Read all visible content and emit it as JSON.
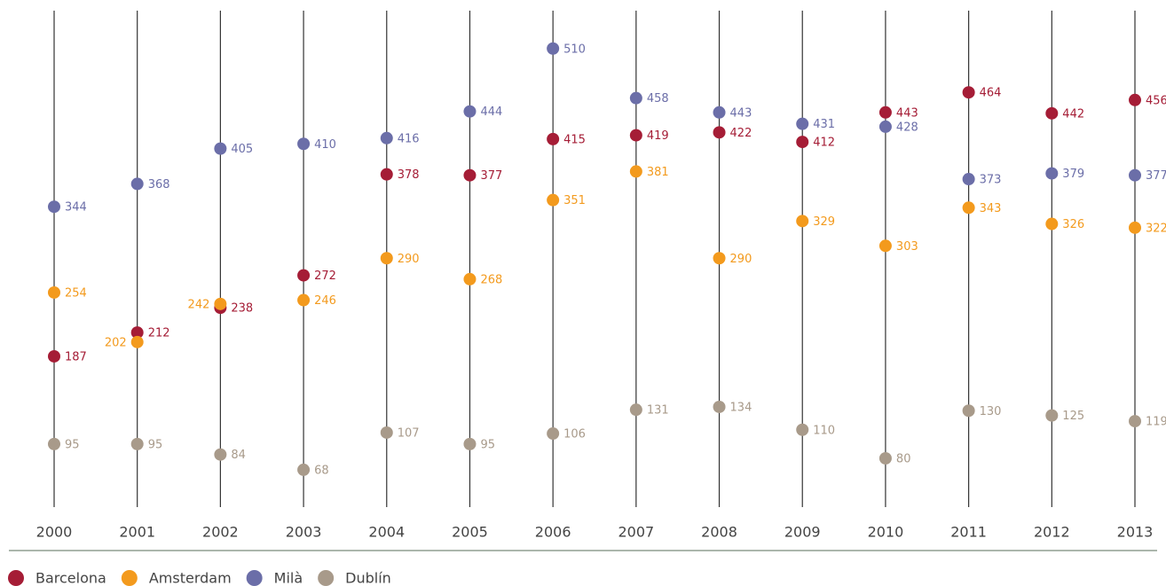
{
  "chart_data": {
    "type": "dot",
    "categories": [
      "2000",
      "2001",
      "2002",
      "2003",
      "2004",
      "2005",
      "2006",
      "2007",
      "2008",
      "2009",
      "2010",
      "2011",
      "2012",
      "2013"
    ],
    "series": [
      {
        "name": "Barcelona",
        "color": "#a51d36",
        "values": [
          187,
          212,
          238,
          272,
          378,
          377,
          415,
          419,
          422,
          412,
          443,
          464,
          442,
          456
        ]
      },
      {
        "name": "Amsterdam",
        "color": "#f39a1d",
        "values": [
          254,
          202,
          242,
          246,
          290,
          268,
          351,
          381,
          290,
          329,
          303,
          343,
          326,
          322
        ]
      },
      {
        "name": "Milà",
        "color": "#6b6ea8",
        "values": [
          344,
          368,
          405,
          410,
          416,
          444,
          510,
          458,
          443,
          431,
          428,
          373,
          379,
          377
        ]
      },
      {
        "name": "Dublín",
        "color": "#a89a8a",
        "values": [
          95,
          95,
          84,
          68,
          107,
          95,
          106,
          131,
          134,
          110,
          80,
          130,
          125,
          119
        ]
      }
    ],
    "legend": "bottom-left"
  }
}
